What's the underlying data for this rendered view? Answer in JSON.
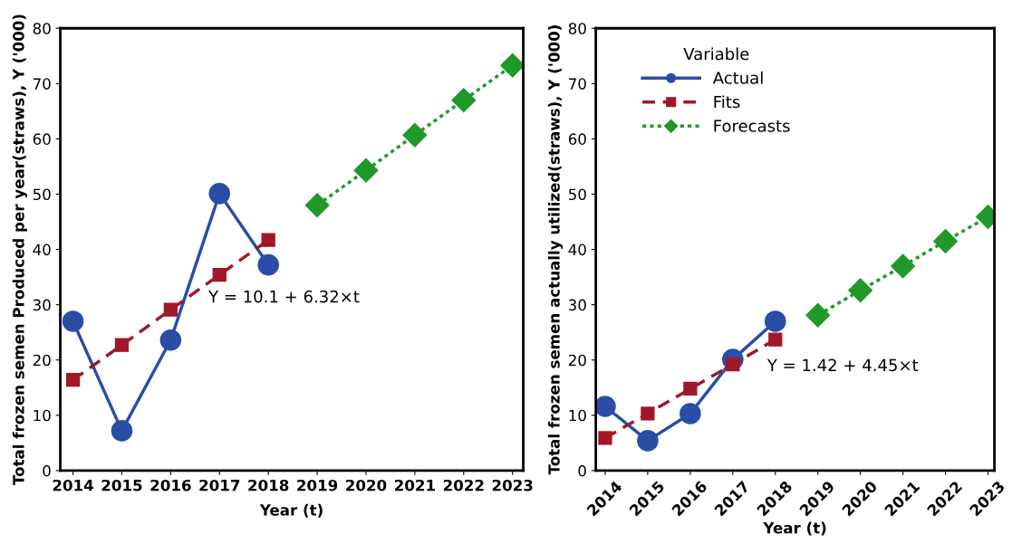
{
  "chart_data": [
    {
      "type": "line",
      "xlabel": "Year (t)",
      "ylabel": "Total frozen semen Produced per year(straws), Y ('000)",
      "categories": [
        "2014",
        "2015",
        "2016",
        "2017",
        "2018",
        "2019",
        "2020",
        "2021",
        "2022",
        "2023"
      ],
      "ylim": [
        0,
        80
      ],
      "yticks": [
        0,
        10,
        20,
        30,
        40,
        50,
        60,
        70,
        80
      ],
      "legend": false,
      "grid": false,
      "series": [
        {
          "color": "#2a4ea6",
          "marker": "circle",
          "line_style": "solid",
          "values": [
            27.0,
            7.2,
            23.6,
            50.1,
            37.2,
            null,
            null,
            null,
            null,
            null
          ]
        },
        {
          "color": "#a0182a",
          "marker": "square",
          "line_style": "dashed",
          "values": [
            16.4,
            22.7,
            29.1,
            35.4,
            41.7,
            null,
            null,
            null,
            null,
            null
          ]
        },
        {
          "color": "#1f9a2a",
          "marker": "diamond",
          "line_style": "dotted",
          "values": [
            null,
            null,
            null,
            null,
            null,
            48.0,
            54.3,
            60.7,
            67.0,
            73.3
          ]
        }
      ],
      "annotations": [
        "Y = 10.1 + 6.32×t"
      ]
    },
    {
      "type": "line",
      "xlabel": "Year (t)",
      "ylabel": "Total frozen semen actually utilized(straws), Y ('000)",
      "categories": [
        "2014",
        "2015",
        "2016",
        "2017",
        "2018",
        "2019",
        "2020",
        "2021",
        "2022",
        "2023"
      ],
      "ylim": [
        0,
        80
      ],
      "yticks": [
        0,
        10,
        20,
        30,
        40,
        50,
        60,
        70,
        80
      ],
      "legend": "top left",
      "legend_title": "Variable",
      "grid": false,
      "series": [
        {
          "name": "Actual",
          "color": "#2a4ea6",
          "marker": "circle",
          "line_style": "solid",
          "values": [
            11.6,
            5.4,
            10.3,
            20.1,
            27.0,
            null,
            null,
            null,
            null,
            null
          ]
        },
        {
          "name": "Fits",
          "color": "#a0182a",
          "marker": "square",
          "line_style": "dashed",
          "values": [
            5.9,
            10.3,
            14.8,
            19.2,
            23.7,
            null,
            null,
            null,
            null,
            null
          ]
        },
        {
          "name": "Forecasts",
          "color": "#1f9a2a",
          "marker": "diamond",
          "line_style": "dotted",
          "values": [
            null,
            null,
            null,
            null,
            null,
            28.1,
            32.6,
            37.0,
            41.5,
            45.9
          ]
        }
      ],
      "annotations": [
        "Y = 1.42 + 4.45×t"
      ]
    }
  ]
}
